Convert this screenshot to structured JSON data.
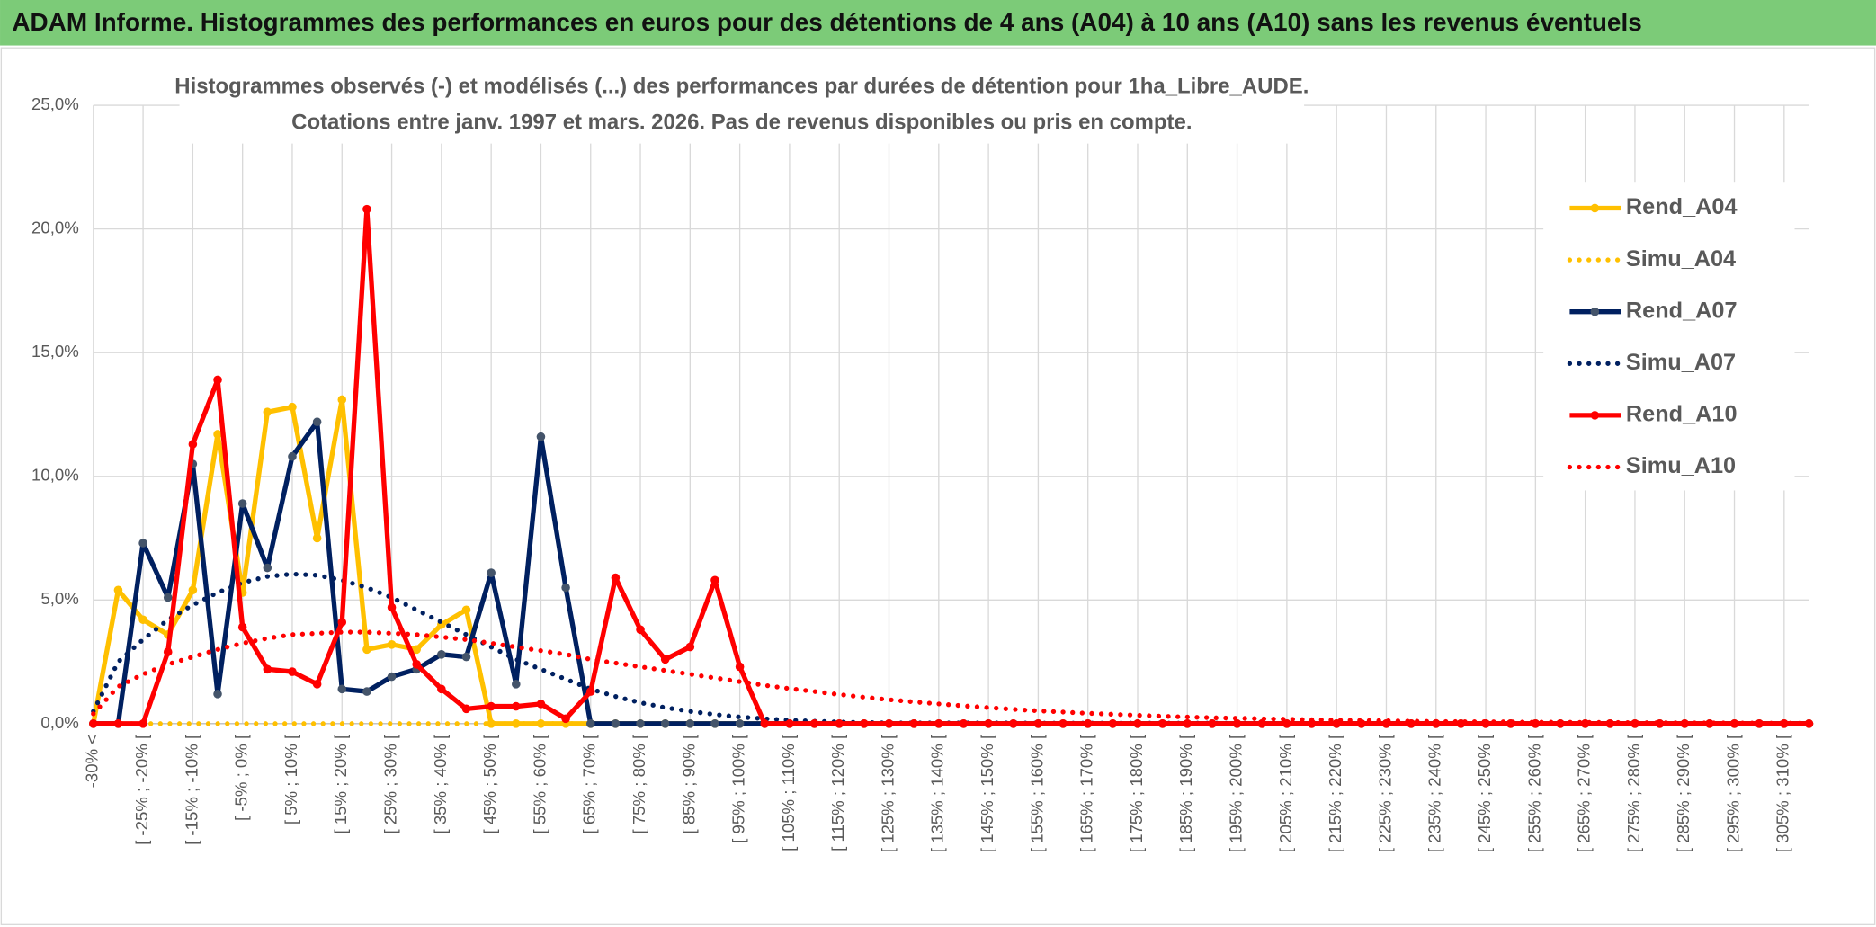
{
  "header": {
    "title": "ADAM Informe. Histogrammes des performances en euros pour des détentions de 4 ans (A04) à 10 ans (A10) sans les revenus éventuels"
  },
  "chart_data": {
    "type": "line",
    "title": "Histogrammes observés (-) et modélisés (...) des performances par durées de détention pour 1ha_Libre_AUDE.",
    "subtitle": "Cotations entre janv. 1997 et mars. 2026. Pas de revenus disponibles ou pris en compte.",
    "categories": [
      "-30% <",
      null,
      "[ -25% ; -20% [",
      null,
      "[ -15% ; -10% [",
      null,
      "[ -5% ; 0% [",
      null,
      "[ 5% ; 10% [",
      null,
      "[ 15% ; 20% [",
      null,
      "[ 25% ; 30% [",
      null,
      "[ 35% ; 40% [",
      null,
      "[ 45% ; 50% [",
      null,
      "[ 55% ; 60% [",
      null,
      "[ 65% ; 70% [",
      null,
      "[ 75% ; 80% [",
      null,
      "[ 85% ; 90% [",
      null,
      "[ 95% ; 100% [",
      null,
      "[ 105% ; 110% [",
      null,
      "[ 115% ; 120% [",
      null,
      "[ 125% ; 130% [",
      null,
      "[ 135% ; 140% [",
      null,
      "[ 145% ; 150% [",
      null,
      "[ 155% ; 160% [",
      null,
      "[ 165% ; 170% [",
      null,
      "[ 175% ; 180% [",
      null,
      "[ 185% ; 190% [",
      null,
      "[ 195% ; 200% [",
      null,
      "[ 205% ; 210% [",
      null,
      "[ 215% ; 220% [",
      null,
      "[ 225% ; 230% [",
      null,
      "[ 235% ; 240% [",
      null,
      "[ 245% ; 250% [",
      null,
      "[ 255% ; 260% [",
      null,
      "[ 265% ; 270% [",
      null,
      "[ 275% ; 280% [",
      null,
      "[ 285% ; 290% [",
      null,
      "[ 295% ; 300% [",
      null,
      "[ 305% ; 310% [",
      null
    ],
    "series": [
      {
        "name": "Rend_A04",
        "color": "#ffc000",
        "line_style": "solid",
        "markers": true,
        "marker_color": "#ffc000",
        "values": [
          0,
          5.4,
          4.2,
          3.6,
          5.4,
          11.7,
          5.3,
          12.6,
          12.8,
          7.5,
          13.1,
          3.0,
          3.2,
          3.0,
          4.0,
          4.6,
          0,
          0,
          0,
          0,
          0,
          0,
          0,
          0,
          0,
          0,
          0,
          0,
          0,
          0,
          0,
          0,
          0,
          0,
          0,
          0,
          0,
          0,
          0,
          0,
          0,
          0,
          0,
          0,
          0,
          0,
          0,
          0,
          0,
          0,
          0,
          0,
          0,
          0,
          0,
          0,
          0,
          0,
          0,
          0,
          0,
          0,
          0,
          0,
          0,
          0,
          0,
          0,
          0,
          0
        ]
      },
      {
        "name": "Simu_A04",
        "color": "#ffc000",
        "line_style": "dotted",
        "markers": false,
        "values": [
          0,
          0,
          0,
          0,
          0,
          0,
          0,
          0,
          0,
          0,
          0,
          0,
          0,
          0,
          0,
          0,
          0,
          0,
          0,
          0,
          0,
          0,
          0,
          0,
          0,
          0,
          0,
          0,
          0,
          0,
          0,
          0,
          0,
          0,
          0,
          0,
          0,
          0,
          0,
          0,
          0,
          0,
          0,
          0,
          0,
          0,
          0,
          0,
          0,
          0,
          0,
          0,
          0,
          0,
          0,
          0,
          0,
          0,
          0,
          0,
          0,
          0,
          0,
          0,
          0,
          0,
          0,
          0,
          0,
          0
        ]
      },
      {
        "name": "Rend_A07",
        "color": "#002060",
        "line_style": "solid",
        "markers": true,
        "marker_color": "#44546a",
        "values": [
          0,
          0,
          7.3,
          5.1,
          10.5,
          1.2,
          8.9,
          6.3,
          10.8,
          12.2,
          1.4,
          1.3,
          1.9,
          2.2,
          2.8,
          2.7,
          6.1,
          1.6,
          11.6,
          5.5,
          0,
          0,
          0,
          0,
          0,
          0,
          0,
          0,
          0,
          0,
          0,
          0,
          0,
          0,
          0,
          0,
          0,
          0,
          0,
          0,
          0,
          0,
          0,
          0,
          0,
          0,
          0,
          0,
          0,
          0,
          0,
          0,
          0,
          0,
          0,
          0,
          0,
          0,
          0,
          0,
          0,
          0,
          0,
          0,
          0,
          0,
          0,
          0,
          0,
          0
        ]
      },
      {
        "name": "Simu_A07",
        "color": "#002060",
        "line_style": "dotted",
        "markers": false,
        "values": [
          0.5,
          2.5,
          3.4,
          4.2,
          4.8,
          5.3,
          5.7,
          5.95,
          6.05,
          6.0,
          5.8,
          5.5,
          5.1,
          4.6,
          4.1,
          3.6,
          3.1,
          2.6,
          2.2,
          1.8,
          1.4,
          1.1,
          0.85,
          0.65,
          0.5,
          0.37,
          0.27,
          0.2,
          0.14,
          0.1,
          0.07,
          0.05,
          0.03,
          0.03,
          0.03,
          0.03,
          0.03,
          0.03,
          0.02,
          0.02,
          0.02,
          0.02,
          0.02,
          0.02,
          0.02,
          0.02,
          0.01,
          0.01,
          0.01,
          0.01,
          0.01,
          0.01,
          0.01,
          0.01,
          0.01,
          0.01,
          0,
          0,
          0,
          0,
          0,
          0,
          0,
          0,
          0,
          0,
          0,
          0,
          0,
          0
        ]
      },
      {
        "name": "Rend_A10",
        "color": "#ff0000",
        "line_style": "solid",
        "markers": true,
        "marker_color": "#ff0000",
        "values": [
          0,
          0,
          0,
          2.9,
          11.3,
          13.9,
          3.9,
          2.2,
          2.1,
          1.6,
          4.1,
          20.8,
          4.7,
          2.4,
          1.4,
          0.6,
          0.7,
          0.7,
          0.8,
          0.2,
          1.3,
          5.9,
          3.8,
          2.6,
          3.1,
          5.8,
          2.3,
          0,
          0,
          0,
          0,
          0,
          0,
          0,
          0,
          0,
          0,
          0,
          0,
          0,
          0,
          0,
          0,
          0,
          0,
          0,
          0,
          0,
          0,
          0,
          0,
          0,
          0,
          0,
          0,
          0,
          0,
          0,
          0,
          0,
          0,
          0,
          0,
          0,
          0,
          0,
          0,
          0,
          0,
          0
        ]
      },
      {
        "name": "Simu_A10",
        "color": "#ff0000",
        "line_style": "dotted",
        "markers": false,
        "values": [
          0.4,
          1.5,
          2.0,
          2.4,
          2.7,
          3.0,
          3.25,
          3.45,
          3.6,
          3.65,
          3.7,
          3.7,
          3.65,
          3.6,
          3.5,
          3.4,
          3.25,
          3.1,
          2.95,
          2.8,
          2.6,
          2.45,
          2.3,
          2.15,
          2.0,
          1.85,
          1.7,
          1.55,
          1.42,
          1.3,
          1.18,
          1.07,
          0.97,
          0.88,
          0.8,
          0.72,
          0.65,
          0.58,
          0.52,
          0.47,
          0.42,
          0.38,
          0.34,
          0.3,
          0.27,
          0.24,
          0.22,
          0.2,
          0.18,
          0.16,
          0.14,
          0.13,
          0.12,
          0.1,
          0.09,
          0.08,
          0.08,
          0.07,
          0.06,
          0.06,
          0.05,
          0.05,
          0.04,
          0.04,
          0.03,
          0.03,
          0.03,
          0.02,
          0.02,
          0.02
        ]
      }
    ],
    "ylim": [
      0,
      25
    ],
    "yticks": [
      {
        "value": 0,
        "label": "0,0%"
      },
      {
        "value": 5,
        "label": "5,0%"
      },
      {
        "value": 10,
        "label": "10,0%"
      },
      {
        "value": 15,
        "label": "15,0%"
      },
      {
        "value": 20,
        "label": "20,0%"
      },
      {
        "value": 25,
        "label": "25,0%"
      }
    ],
    "grid": true,
    "legend": "right"
  }
}
